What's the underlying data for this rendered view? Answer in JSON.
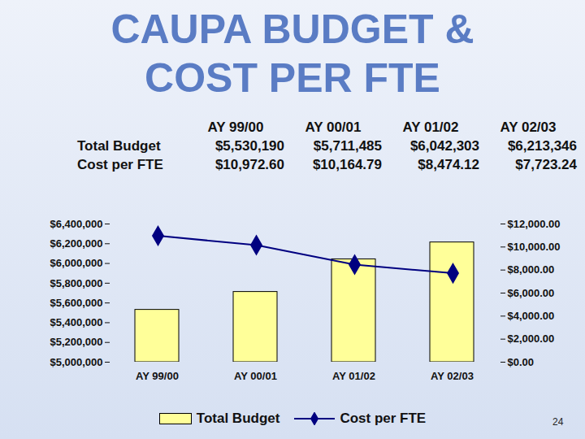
{
  "chart_data": {
    "type": "bar",
    "title": "CAUPA BUDGET & COST PER FTE",
    "categories": [
      "AY 99/00",
      "AY 00/01",
      "AY 01/02",
      "AY 02/03"
    ],
    "series": [
      {
        "name": "Total Budget",
        "type": "bar",
        "color": "#ffff99",
        "values": [
          5530190,
          5711485,
          6042303,
          6213346
        ]
      },
      {
        "name": "Cost per FTE",
        "type": "line",
        "axis": "y2",
        "color": "#000080",
        "marker": "diamond",
        "values": [
          10972.6,
          10164.79,
          8474.12,
          7723.24
        ]
      }
    ],
    "ylim": [
      5000000,
      6400000
    ],
    "yticks": [
      {
        "value": 5000000,
        "label": "$5,000,000"
      },
      {
        "value": 5200000,
        "label": "$5,200,000"
      },
      {
        "value": 5400000,
        "label": "$5,400,000"
      },
      {
        "value": 5600000,
        "label": "$5,600,000"
      },
      {
        "value": 5800000,
        "label": "$5,800,000"
      },
      {
        "value": 6000000,
        "label": "$6,000,000"
      },
      {
        "value": 6200000,
        "label": "$6,200,000"
      },
      {
        "value": 6400000,
        "label": "$6,400,000"
      }
    ],
    "y2lim": [
      0,
      12000
    ],
    "y2ticks": [
      {
        "value": 0,
        "label": "$0.00"
      },
      {
        "value": 2000,
        "label": "$2,000.00"
      },
      {
        "value": 4000,
        "label": "$4,000.00"
      },
      {
        "value": 6000,
        "label": "$6,000.00"
      },
      {
        "value": 8000,
        "label": "$8,000.00"
      },
      {
        "value": 10000,
        "label": "$10,000.00"
      },
      {
        "value": 12000,
        "label": "$12,000.00"
      }
    ],
    "legend": "bottom",
    "grid": false
  },
  "table": {
    "columns": [
      "AY 99/00",
      "AY 00/01",
      "AY 01/02",
      "AY 02/03"
    ],
    "rows": [
      [
        "Total Budget",
        "$5,530,190",
        "$5,711,485",
        "$6,042,303",
        "$6,213,346"
      ],
      [
        "Cost per FTE",
        "$10,972.60",
        "$10,164.79",
        "$8,474.12",
        "$7,723.24"
      ]
    ]
  },
  "page_number": "24"
}
